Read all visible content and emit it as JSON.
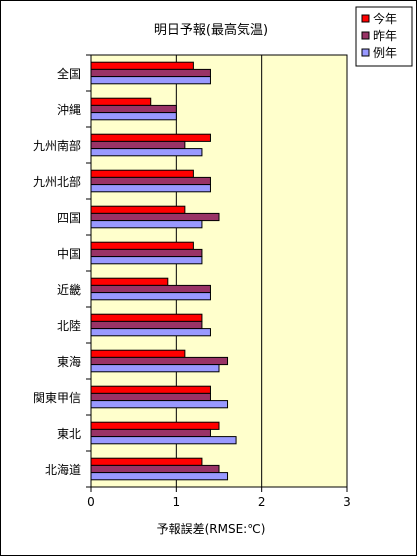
{
  "chart_data": {
    "type": "bar",
    "orientation": "horizontal",
    "title": "明日予報(最高気温)",
    "xlabel": "予報誤差(RMSE:℃)",
    "ylabel": "",
    "xlim": [
      0,
      3
    ],
    "xticks": [
      "0",
      "1",
      "2",
      "3"
    ],
    "grid": "vertical",
    "legend_position": "top-right",
    "plot_background": "#ffffcc",
    "categories": [
      "全国",
      "沖縄",
      "九州南部",
      "九州北部",
      "四国",
      "中国",
      "近畿",
      "北陸",
      "東海",
      "関東甲信",
      "東北",
      "北海道"
    ],
    "series": [
      {
        "name": "今年",
        "color": "#ff0000",
        "values": [
          1.2,
          0.7,
          1.4,
          1.2,
          1.1,
          1.2,
          0.9,
          1.3,
          1.1,
          1.4,
          1.5,
          1.3
        ]
      },
      {
        "name": "昨年",
        "color": "#993366",
        "values": [
          1.4,
          1.0,
          1.1,
          1.4,
          1.5,
          1.3,
          1.4,
          1.3,
          1.6,
          1.4,
          1.4,
          1.5
        ]
      },
      {
        "name": "例年",
        "color": "#9999ff",
        "values": [
          1.4,
          1.0,
          1.3,
          1.4,
          1.3,
          1.3,
          1.4,
          1.4,
          1.5,
          1.6,
          1.7,
          1.6
        ]
      }
    ]
  }
}
